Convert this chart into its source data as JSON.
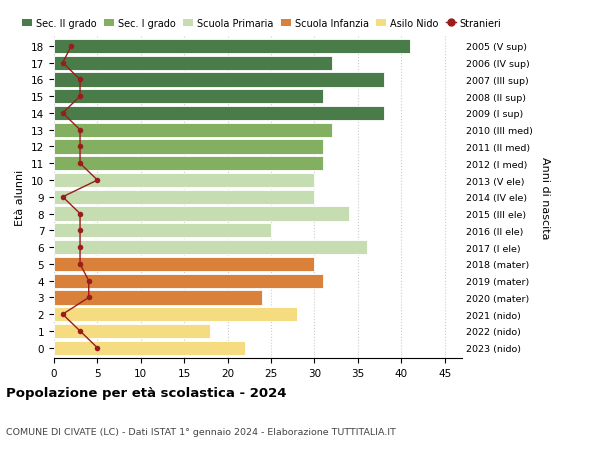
{
  "ages": [
    18,
    17,
    16,
    15,
    14,
    13,
    12,
    11,
    10,
    9,
    8,
    7,
    6,
    5,
    4,
    3,
    2,
    1,
    0
  ],
  "bar_values": [
    41,
    32,
    38,
    31,
    38,
    32,
    31,
    31,
    30,
    30,
    34,
    25,
    36,
    30,
    31,
    24,
    28,
    18,
    22
  ],
  "right_labels": [
    "2005 (V sup)",
    "2006 (IV sup)",
    "2007 (III sup)",
    "2008 (II sup)",
    "2009 (I sup)",
    "2010 (III med)",
    "2011 (II med)",
    "2012 (I med)",
    "2013 (V ele)",
    "2014 (IV ele)",
    "2015 (III ele)",
    "2016 (II ele)",
    "2017 (I ele)",
    "2018 (mater)",
    "2019 (mater)",
    "2020 (mater)",
    "2021 (nido)",
    "2022 (nido)",
    "2023 (nido)"
  ],
  "bar_colors": [
    "#4a7c4a",
    "#4a7c4a",
    "#4a7c4a",
    "#4a7c4a",
    "#4a7c4a",
    "#82b060",
    "#82b060",
    "#82b060",
    "#c5ddb0",
    "#c5ddb0",
    "#c5ddb0",
    "#c5ddb0",
    "#c5ddb0",
    "#d9813a",
    "#d9813a",
    "#d9813a",
    "#f5dc80",
    "#f5dc80",
    "#f5dc80"
  ],
  "stranieri_values": [
    2,
    1,
    3,
    3,
    1,
    3,
    3,
    3,
    5,
    1,
    3,
    3,
    3,
    3,
    4,
    4,
    1,
    3,
    5
  ],
  "stranieri_color": "#9b1c1c",
  "ylabel_left": "Età alunni",
  "ylabel_right": "Anni di nascita",
  "xlim": [
    0,
    47
  ],
  "xticks": [
    0,
    5,
    10,
    15,
    20,
    25,
    30,
    35,
    40,
    45
  ],
  "title": "Popolazione per età scolastica - 2024",
  "subtitle": "COMUNE DI CIVATE (LC) - Dati ISTAT 1° gennaio 2024 - Elaborazione TUTTITALIA.IT",
  "legend_labels": [
    "Sec. II grado",
    "Sec. I grado",
    "Scuola Primaria",
    "Scuola Infanzia",
    "Asilo Nido",
    "Stranieri"
  ],
  "legend_colors": [
    "#4a7c4a",
    "#82b060",
    "#c5ddb0",
    "#d9813a",
    "#f5dc80",
    "#9b1c1c"
  ],
  "grid_color": "#cccccc",
  "bar_height": 0.85
}
